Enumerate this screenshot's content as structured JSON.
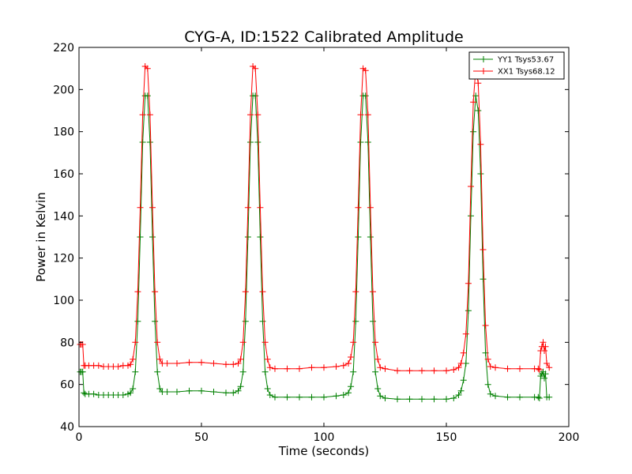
{
  "chart_data": {
    "type": "line",
    "title": "CYG-A, ID:1522 Calibrated Amplitude",
    "xlabel": "Time (seconds)",
    "ylabel": "Power in Kelvin",
    "xlim": [
      0,
      200
    ],
    "ylim": [
      40,
      220
    ],
    "xticks": [
      "0",
      "50",
      "100",
      "150",
      "200"
    ],
    "yticks": [
      "40",
      "60",
      "80",
      "100",
      "120",
      "140",
      "160",
      "180",
      "200",
      "220"
    ],
    "grid": false,
    "legend_position": "top-right",
    "series": [
      {
        "name": "YY1 Tsys53.67",
        "color": "#008000",
        "marker": "+",
        "x": [
          0.5,
          1,
          1.5,
          2,
          2.5,
          4,
          6,
          8,
          10,
          12,
          14,
          16,
          18,
          20,
          21,
          22,
          23,
          24,
          25,
          26,
          27,
          28,
          29,
          30,
          31,
          32,
          33,
          34,
          36,
          40,
          45,
          50,
          55,
          60,
          63,
          65,
          66,
          67,
          68,
          69,
          70,
          71,
          72,
          73,
          74,
          75,
          76,
          77,
          78,
          80,
          85,
          90,
          95,
          100,
          105,
          108,
          110,
          111,
          112,
          113,
          114,
          115,
          116,
          117,
          118,
          119,
          120,
          121,
          122,
          123,
          125,
          130,
          135,
          140,
          145,
          150,
          153,
          155,
          156,
          157,
          158,
          159,
          160,
          161,
          162,
          163,
          164,
          165,
          166,
          167,
          168,
          170,
          175,
          180,
          186,
          187.5,
          188,
          188.5,
          189,
          189.5,
          190,
          190.5,
          191,
          192
        ],
        "values": [
          66,
          66,
          66,
          56,
          55.5,
          55.5,
          55.5,
          55,
          55,
          55,
          55,
          55,
          55,
          55.5,
          56,
          58,
          66,
          90,
          130,
          175,
          197,
          197,
          175,
          130,
          90,
          66,
          58,
          56.5,
          56.5,
          56.5,
          57,
          57,
          56.5,
          56,
          56,
          57,
          59,
          66,
          90,
          130,
          175,
          197,
          197,
          175,
          130,
          90,
          66,
          58,
          55,
          54,
          54,
          54,
          54,
          54,
          54.5,
          55,
          56,
          59,
          66,
          90,
          130,
          175,
          197,
          197,
          175,
          130,
          90,
          66,
          58,
          54.5,
          53.5,
          53,
          53,
          53,
          53,
          53,
          53.5,
          55,
          57,
          62,
          70,
          95,
          140,
          180,
          197,
          190,
          160,
          110,
          75,
          60,
          55.5,
          54.5,
          54,
          54,
          54,
          54,
          53.5,
          64,
          65,
          66,
          63,
          65,
          54,
          54
        ]
      },
      {
        "name": "XX1 Tsys68.12",
        "color": "#ff0000",
        "marker": "+",
        "x": [
          0.5,
          1,
          1.5,
          2,
          2.5,
          4,
          6,
          8,
          10,
          12,
          14,
          16,
          18,
          20,
          21,
          22,
          23,
          24,
          25,
          26,
          27,
          28,
          29,
          30,
          31,
          32,
          33,
          34,
          36,
          40,
          45,
          50,
          55,
          60,
          63,
          65,
          66,
          67,
          68,
          69,
          70,
          71,
          72,
          73,
          74,
          75,
          76,
          77,
          78,
          80,
          85,
          90,
          95,
          100,
          105,
          108,
          110,
          111,
          112,
          113,
          114,
          115,
          116,
          117,
          118,
          119,
          120,
          121,
          122,
          123,
          125,
          130,
          135,
          140,
          145,
          150,
          153,
          155,
          156,
          157,
          158,
          159,
          160,
          161,
          162,
          163,
          164,
          165,
          166,
          167,
          168,
          170,
          175,
          180,
          186,
          187.5,
          188,
          188.5,
          189,
          189.5,
          190,
          190.5,
          191,
          192
        ],
        "values": [
          79,
          79,
          79,
          69,
          69,
          69,
          69,
          69,
          68.5,
          68.5,
          68.5,
          68.5,
          69,
          69,
          69.5,
          72,
          80,
          104,
          144,
          188,
          211,
          210,
          188,
          144,
          104,
          80,
          72,
          70,
          70,
          70,
          70.5,
          70.5,
          70,
          69.5,
          69.5,
          70,
          72,
          80,
          104,
          144,
          188,
          211,
          210,
          188,
          144,
          104,
          80,
          72,
          68,
          67.5,
          67.5,
          67.5,
          68,
          68,
          68.5,
          69,
          70,
          73,
          80,
          104,
          144,
          188,
          210,
          209,
          188,
          144,
          104,
          80,
          72,
          68,
          67.5,
          66.5,
          66.5,
          66.5,
          66.5,
          66.5,
          67,
          68,
          70,
          75,
          84,
          108,
          154,
          194,
          210,
          203,
          174,
          124,
          88,
          72,
          68.5,
          68,
          67.5,
          67.5,
          67.5,
          67.5,
          67,
          76,
          78,
          80,
          76,
          78,
          70,
          68
        ]
      }
    ]
  }
}
